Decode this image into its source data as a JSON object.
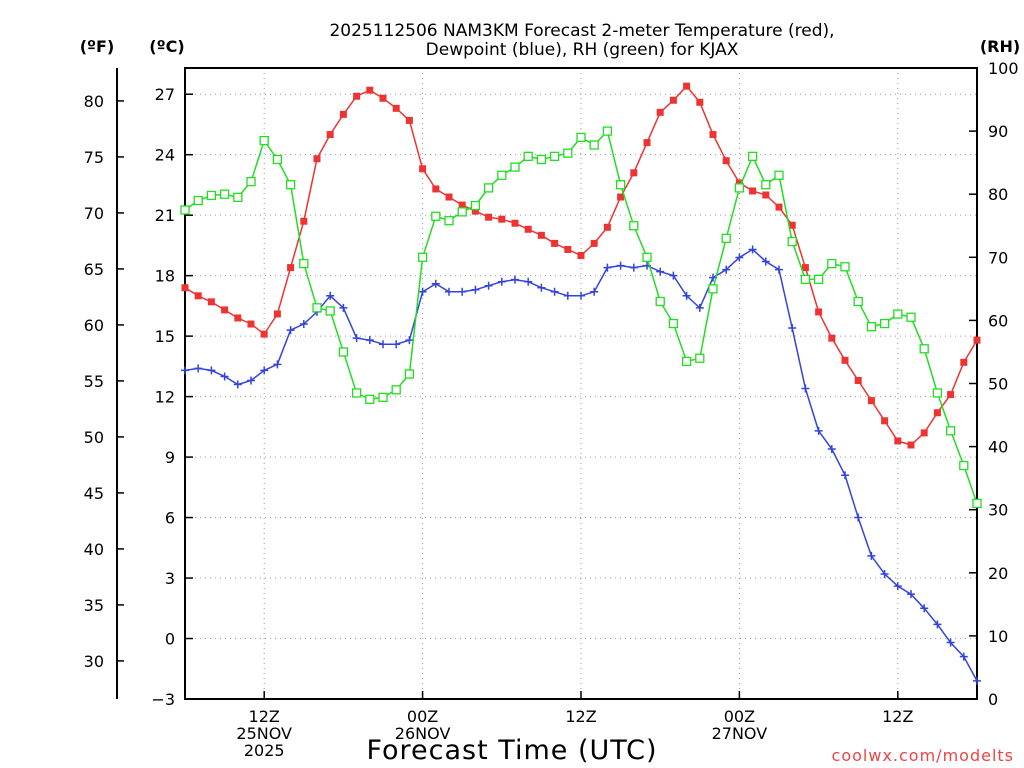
{
  "chart_data": {
    "type": "line",
    "title_line1": "2025112506 NAM3KM Forecast 2-meter Temperature (red),",
    "title_line2": "Dewpoint (blue), RH (green) for KJAX",
    "xlabel": "Forecast Time (UTC)",
    "watermark": "coolwx.com/modelts",
    "unit_labels": {
      "fahrenheit": "(ºF)",
      "celsius": "(ºC)",
      "rh": "(RH)"
    },
    "x_range_hours": [
      1,
      61
    ],
    "celsius_range": [
      -3,
      28.3
    ],
    "rh_range": [
      0,
      100
    ],
    "fahrenheit_ticks": [
      30,
      35,
      40,
      45,
      50,
      55,
      60,
      65,
      70,
      75,
      80
    ],
    "celsius_ticks": [
      -3,
      0,
      3,
      6,
      9,
      12,
      15,
      18,
      21,
      24,
      27
    ],
    "rh_ticks": [
      0,
      10,
      20,
      30,
      40,
      50,
      60,
      70,
      80,
      90,
      100
    ],
    "x_ticks": [
      {
        "hour": 7,
        "lines": [
          "12Z",
          "25NOV",
          "2025"
        ]
      },
      {
        "hour": 19,
        "lines": [
          "00Z",
          "26NOV"
        ]
      },
      {
        "hour": 31,
        "lines": [
          "12Z"
        ]
      },
      {
        "hour": 43,
        "lines": [
          "00Z",
          "27NOV"
        ]
      },
      {
        "hour": 55,
        "lines": [
          "12Z"
        ]
      }
    ],
    "series": [
      {
        "name": "Temperature",
        "unit": "C",
        "color": "#ee3333",
        "marker": "filled-square",
        "hours": [
          1,
          2,
          3,
          4,
          5,
          6,
          7,
          8,
          9,
          10,
          11,
          12,
          13,
          14,
          15,
          16,
          17,
          18,
          19,
          20,
          21,
          22,
          23,
          24,
          25,
          26,
          27,
          28,
          29,
          30,
          31,
          32,
          33,
          34,
          35,
          36,
          37,
          38,
          39,
          40,
          41,
          42,
          43,
          44,
          45,
          46,
          47,
          48,
          49,
          50,
          51,
          52,
          53,
          54,
          55,
          56,
          57,
          58,
          59,
          60,
          61
        ],
        "values": [
          17.4,
          17.0,
          16.7,
          16.3,
          15.9,
          15.6,
          15.1,
          16.1,
          18.4,
          20.7,
          23.8,
          25.0,
          26.0,
          26.9,
          27.2,
          26.8,
          26.3,
          25.7,
          23.3,
          22.3,
          21.9,
          21.5,
          21.2,
          20.9,
          20.8,
          20.6,
          20.3,
          20.0,
          19.6,
          19.3,
          19.0,
          19.6,
          20.4,
          21.9,
          23.1,
          24.6,
          26.1,
          26.7,
          27.4,
          26.6,
          25.0,
          23.7,
          22.6,
          22.2,
          22.0,
          21.4,
          20.5,
          18.4,
          16.2,
          14.9,
          13.8,
          12.8,
          11.8,
          10.8,
          9.8,
          9.6,
          10.2,
          11.2,
          12.1,
          13.7,
          14.8
        ]
      },
      {
        "name": "Dewpoint",
        "unit": "C",
        "color": "#3344dd",
        "marker": "plus",
        "hours": [
          1,
          2,
          3,
          4,
          5,
          6,
          7,
          8,
          9,
          10,
          11,
          12,
          13,
          14,
          15,
          16,
          17,
          18,
          19,
          20,
          21,
          22,
          23,
          24,
          25,
          26,
          27,
          28,
          29,
          30,
          31,
          32,
          33,
          34,
          35,
          36,
          37,
          38,
          39,
          40,
          41,
          42,
          43,
          44,
          45,
          46,
          47,
          48,
          49,
          50,
          51,
          52,
          53,
          54,
          55,
          56,
          57,
          58,
          59,
          60,
          61
        ],
        "values": [
          13.3,
          13.4,
          13.3,
          13.0,
          12.6,
          12.8,
          13.3,
          13.6,
          15.3,
          15.6,
          16.2,
          17.0,
          16.4,
          14.9,
          14.8,
          14.6,
          14.6,
          14.8,
          17.2,
          17.6,
          17.2,
          17.2,
          17.3,
          17.5,
          17.7,
          17.8,
          17.7,
          17.4,
          17.2,
          17.0,
          17.0,
          17.2,
          18.4,
          18.5,
          18.4,
          18.5,
          18.2,
          18.0,
          17.0,
          16.4,
          17.9,
          18.3,
          18.9,
          19.3,
          18.7,
          18.3,
          15.4,
          12.4,
          10.3,
          9.4,
          8.1,
          6.0,
          4.1,
          3.2,
          2.6,
          2.2,
          1.5,
          0.7,
          -0.2,
          -0.9,
          -2.1
        ]
      },
      {
        "name": "RH",
        "unit": "%",
        "color": "#22dd22",
        "marker": "open-square",
        "hours": [
          1,
          2,
          3,
          4,
          5,
          6,
          7,
          8,
          9,
          10,
          11,
          12,
          13,
          14,
          15,
          16,
          17,
          18,
          19,
          20,
          21,
          22,
          23,
          24,
          25,
          26,
          27,
          28,
          29,
          30,
          31,
          32,
          33,
          34,
          35,
          36,
          37,
          38,
          39,
          40,
          41,
          42,
          43,
          44,
          45,
          46,
          47,
          48,
          49,
          50,
          51,
          52,
          53,
          54,
          55,
          56,
          57,
          58,
          59,
          60,
          61
        ],
        "values": [
          77.5,
          79.0,
          79.8,
          80.0,
          79.5,
          82.0,
          88.5,
          85.5,
          81.5,
          69.0,
          62.0,
          61.5,
          55.0,
          48.5,
          47.5,
          47.8,
          49.0,
          51.5,
          70.0,
          76.5,
          75.8,
          77.2,
          78.2,
          81.0,
          83.0,
          84.3,
          86.0,
          85.5,
          86.0,
          86.5,
          89.0,
          87.8,
          90.0,
          81.5,
          75.0,
          70.0,
          63.0,
          59.5,
          53.5,
          54.0,
          65.0,
          73.0,
          81.0,
          86.0,
          81.5,
          83.0,
          72.5,
          66.5,
          66.5,
          69.0,
          68.5,
          63.0,
          59.0,
          59.5,
          61.0,
          60.5,
          55.5,
          48.5,
          42.5,
          37.0,
          31.0
        ]
      }
    ]
  }
}
